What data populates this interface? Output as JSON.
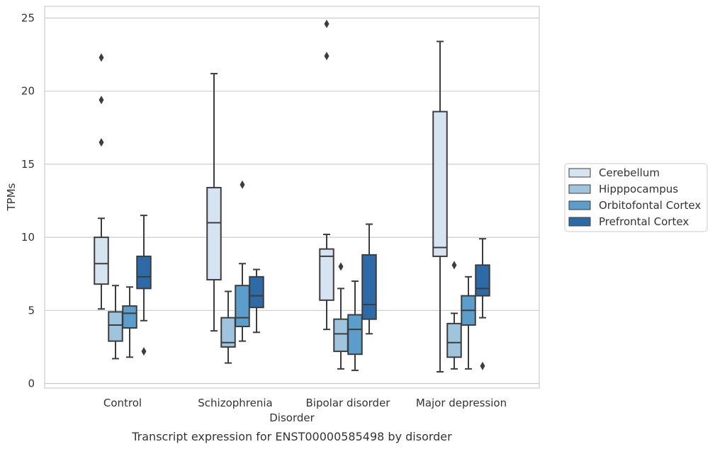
{
  "chart_data": {
    "type": "box",
    "caption": "Transcript expression for ENST00000585498 by disorder",
    "xlabel": "Disorder",
    "ylabel": "TPMs",
    "ylim": [
      -0.3,
      25.8
    ],
    "yticks": [
      0,
      5,
      10,
      15,
      20,
      25
    ],
    "grid": "horizontal",
    "legend_position": "right",
    "categories": [
      "Control",
      "Schizophrenia",
      "Bipolar disorder",
      "Major depression"
    ],
    "series": [
      {
        "name": "Cerebellum",
        "color": "#d6e4f2",
        "boxes": [
          {
            "whisker_low": 5.1,
            "q1": 6.8,
            "median": 8.2,
            "q3": 10.0,
            "whisker_high": 11.3,
            "outliers": [
              16.5,
              19.4,
              22.3
            ]
          },
          {
            "whisker_low": 3.6,
            "q1": 7.1,
            "median": 11.0,
            "q3": 13.4,
            "whisker_high": 21.2,
            "outliers": []
          },
          {
            "whisker_low": 3.7,
            "q1": 5.7,
            "median": 8.7,
            "q3": 9.2,
            "whisker_high": 10.2,
            "outliers": [
              22.4,
              24.6
            ]
          },
          {
            "whisker_low": 0.8,
            "q1": 8.7,
            "median": 9.3,
            "q3": 18.6,
            "whisker_high": 23.4,
            "outliers": []
          }
        ]
      },
      {
        "name": "Hipppocampus",
        "color": "#9fc4dd",
        "boxes": [
          {
            "whisker_low": 1.7,
            "q1": 2.9,
            "median": 4.0,
            "q3": 4.9,
            "whisker_high": 6.7,
            "outliers": []
          },
          {
            "whisker_low": 1.4,
            "q1": 2.5,
            "median": 2.8,
            "q3": 4.5,
            "whisker_high": 6.3,
            "outliers": []
          },
          {
            "whisker_low": 1.0,
            "q1": 2.2,
            "median": 3.4,
            "q3": 4.4,
            "whisker_high": 6.5,
            "outliers": [
              8.0
            ]
          },
          {
            "whisker_low": 1.0,
            "q1": 1.8,
            "median": 2.8,
            "q3": 4.1,
            "whisker_high": 4.8,
            "outliers": [
              8.1
            ]
          }
        ]
      },
      {
        "name": "Orbitofontal Cortex",
        "color": "#5c9ecb",
        "boxes": [
          {
            "whisker_low": 1.8,
            "q1": 3.8,
            "median": 4.8,
            "q3": 5.3,
            "whisker_high": 6.6,
            "outliers": []
          },
          {
            "whisker_low": 2.9,
            "q1": 3.9,
            "median": 4.5,
            "q3": 6.7,
            "whisker_high": 8.2,
            "outliers": [
              13.6
            ]
          },
          {
            "whisker_low": 0.9,
            "q1": 2.0,
            "median": 3.7,
            "q3": 4.7,
            "whisker_high": 7.0,
            "outliers": []
          },
          {
            "whisker_low": 1.0,
            "q1": 4.0,
            "median": 5.0,
            "q3": 6.0,
            "whisker_high": 7.3,
            "outliers": []
          }
        ]
      },
      {
        "name": "Prefrontal Cortex",
        "color": "#2c6aa8",
        "boxes": [
          {
            "whisker_low": 4.3,
            "q1": 6.5,
            "median": 7.3,
            "q3": 8.7,
            "whisker_high": 11.5,
            "outliers": [
              2.2
            ]
          },
          {
            "whisker_low": 3.5,
            "q1": 5.2,
            "median": 6.0,
            "q3": 7.3,
            "whisker_high": 7.8,
            "outliers": []
          },
          {
            "whisker_low": 3.4,
            "q1": 4.4,
            "median": 5.4,
            "q3": 8.8,
            "whisker_high": 10.9,
            "outliers": []
          },
          {
            "whisker_low": 4.5,
            "q1": 6.0,
            "median": 6.5,
            "q3": 8.1,
            "whisker_high": 9.9,
            "outliers": [
              1.2
            ]
          }
        ]
      }
    ]
  }
}
